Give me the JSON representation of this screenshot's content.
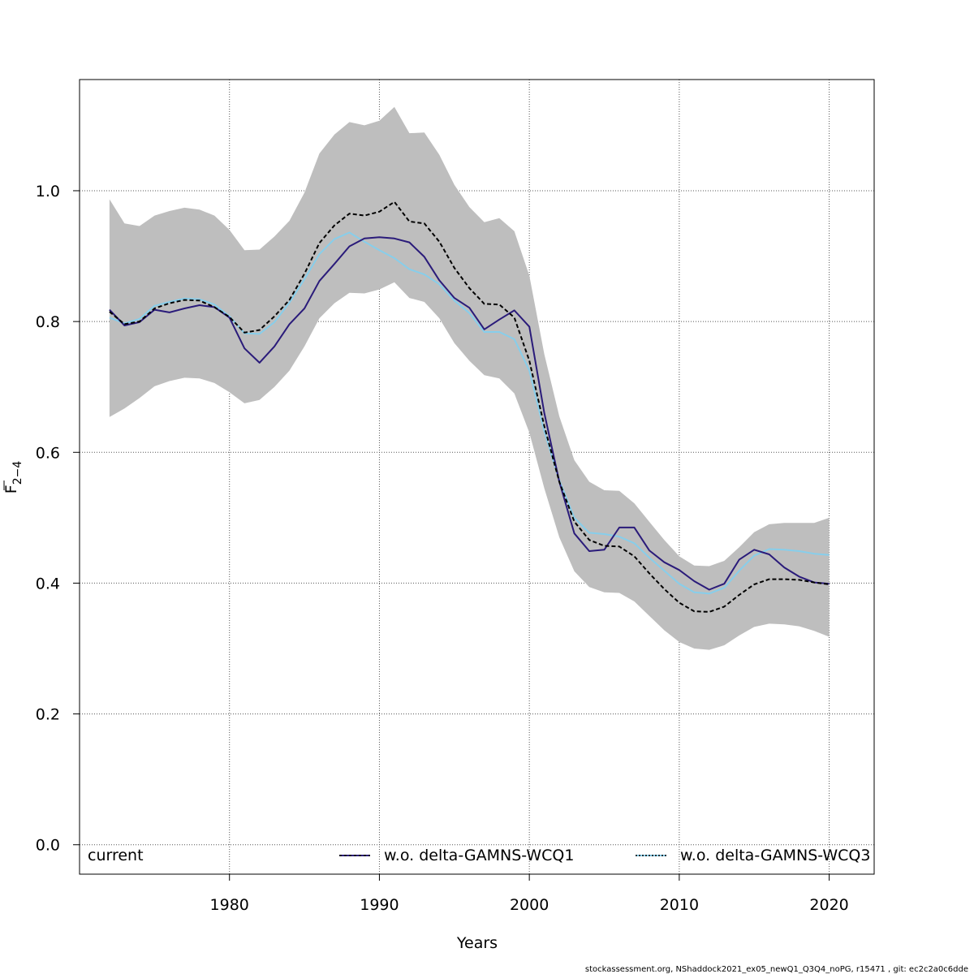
{
  "chart_data": {
    "type": "line",
    "xlabel": "Years",
    "ylabel_main": "F",
    "ylabel_sub": "2−4",
    "xlim": [
      1970.0,
      2023.0
    ],
    "ylim": [
      -0.045,
      1.17
    ],
    "x_ticks": [
      1980,
      1990,
      2000,
      2010,
      2020
    ],
    "y_ticks": [
      0.0,
      0.2,
      0.4,
      0.6,
      0.8,
      1.0
    ],
    "y_tick_labels": [
      "0.0",
      "0.2",
      "0.4",
      "0.6",
      "0.8",
      "1.0"
    ],
    "grid": true,
    "legend_position": "bottom",
    "x": [
      1972,
      1973,
      1974,
      1975,
      1976,
      1977,
      1978,
      1979,
      1980,
      1981,
      1982,
      1983,
      1984,
      1985,
      1986,
      1987,
      1988,
      1989,
      1990,
      1991,
      1992,
      1993,
      1994,
      1995,
      1996,
      1997,
      1998,
      1999,
      2000,
      2001,
      2002,
      2003,
      2004,
      2005,
      2006,
      2007,
      2008,
      2009,
      2010,
      2011,
      2012,
      2013,
      2014,
      2015,
      2016,
      2017,
      2018,
      2019,
      2020
    ],
    "band": {
      "lower": [
        0.654,
        0.667,
        0.683,
        0.701,
        0.709,
        0.714,
        0.713,
        0.706,
        0.692,
        0.675,
        0.68,
        0.7,
        0.725,
        0.762,
        0.805,
        0.828,
        0.844,
        0.843,
        0.849,
        0.86,
        0.836,
        0.83,
        0.805,
        0.767,
        0.74,
        0.718,
        0.713,
        0.69,
        0.63,
        0.545,
        0.47,
        0.418,
        0.394,
        0.386,
        0.385,
        0.372,
        0.35,
        0.328,
        0.31,
        0.3,
        0.298,
        0.305,
        0.32,
        0.333,
        0.338,
        0.337,
        0.334,
        0.327,
        0.318
      ],
      "upper": [
        0.987,
        0.95,
        0.946,
        0.962,
        0.969,
        0.974,
        0.971,
        0.962,
        0.94,
        0.909,
        0.91,
        0.93,
        0.954,
        0.997,
        1.057,
        1.086,
        1.105,
        1.1,
        1.107,
        1.128,
        1.088,
        1.089,
        1.055,
        1.009,
        0.975,
        0.952,
        0.958,
        0.938,
        0.87,
        0.75,
        0.655,
        0.588,
        0.555,
        0.542,
        0.541,
        0.522,
        0.494,
        0.466,
        0.441,
        0.427,
        0.426,
        0.434,
        0.455,
        0.478,
        0.49,
        0.492,
        0.492,
        0.492,
        0.5
      ],
      "color": "#bebebe"
    },
    "series": [
      {
        "name": "current",
        "color": "#000000",
        "style": "dashed",
        "values": [
          0.815,
          0.796,
          0.8,
          0.82,
          0.828,
          0.833,
          0.832,
          0.822,
          0.807,
          0.783,
          0.787,
          0.808,
          0.833,
          0.873,
          0.92,
          0.947,
          0.965,
          0.962,
          0.968,
          0.983,
          0.953,
          0.95,
          0.922,
          0.882,
          0.851,
          0.827,
          0.826,
          0.806,
          0.74,
          0.64,
          0.555,
          0.494,
          0.466,
          0.457,
          0.456,
          0.441,
          0.415,
          0.391,
          0.37,
          0.357,
          0.356,
          0.364,
          0.382,
          0.398,
          0.406,
          0.406,
          0.405,
          0.401,
          0.398
        ]
      },
      {
        "name": "w.o. delta-GAMNS-WCQ1",
        "color": "#2a1b7a",
        "style": "solid",
        "values": [
          0.818,
          0.794,
          0.799,
          0.818,
          0.814,
          0.82,
          0.825,
          0.822,
          0.806,
          0.759,
          0.737,
          0.762,
          0.796,
          0.82,
          0.862,
          0.888,
          0.915,
          0.927,
          0.929,
          0.927,
          0.921,
          0.899,
          0.863,
          0.836,
          0.821,
          0.788,
          0.803,
          0.817,
          0.792,
          0.66,
          0.555,
          0.476,
          0.449,
          0.451,
          0.485,
          0.485,
          0.45,
          0.432,
          0.42,
          0.403,
          0.39,
          0.399,
          0.436,
          0.451,
          0.444,
          0.424,
          0.41,
          0.401,
          0.399
        ]
      },
      {
        "name": "w.o. delta-GAMNS-WCQ3",
        "color": "#87ceeb",
        "style": "solid",
        "values": [
          0.806,
          0.797,
          0.804,
          0.824,
          0.83,
          0.835,
          0.834,
          0.826,
          0.808,
          0.782,
          0.781,
          0.799,
          0.829,
          0.865,
          0.903,
          0.926,
          0.936,
          0.922,
          0.909,
          0.897,
          0.88,
          0.872,
          0.857,
          0.832,
          0.813,
          0.784,
          0.784,
          0.773,
          0.725,
          0.632,
          0.557,
          0.5,
          0.477,
          0.475,
          0.471,
          0.461,
          0.439,
          0.419,
          0.399,
          0.386,
          0.384,
          0.393,
          0.419,
          0.442,
          0.452,
          0.451,
          0.449,
          0.445,
          0.443
        ]
      }
    ],
    "legend": {
      "items": [
        "current",
        "w.o. delta-GAMNS-WCQ1",
        "w.o. delta-GAMNS-WCQ3"
      ]
    }
  },
  "footer": "stockassessment.org, NShaddock2021_ex05_newQ1_Q3Q4_noPG, r15471 , git: ec2c2a0c6dde"
}
